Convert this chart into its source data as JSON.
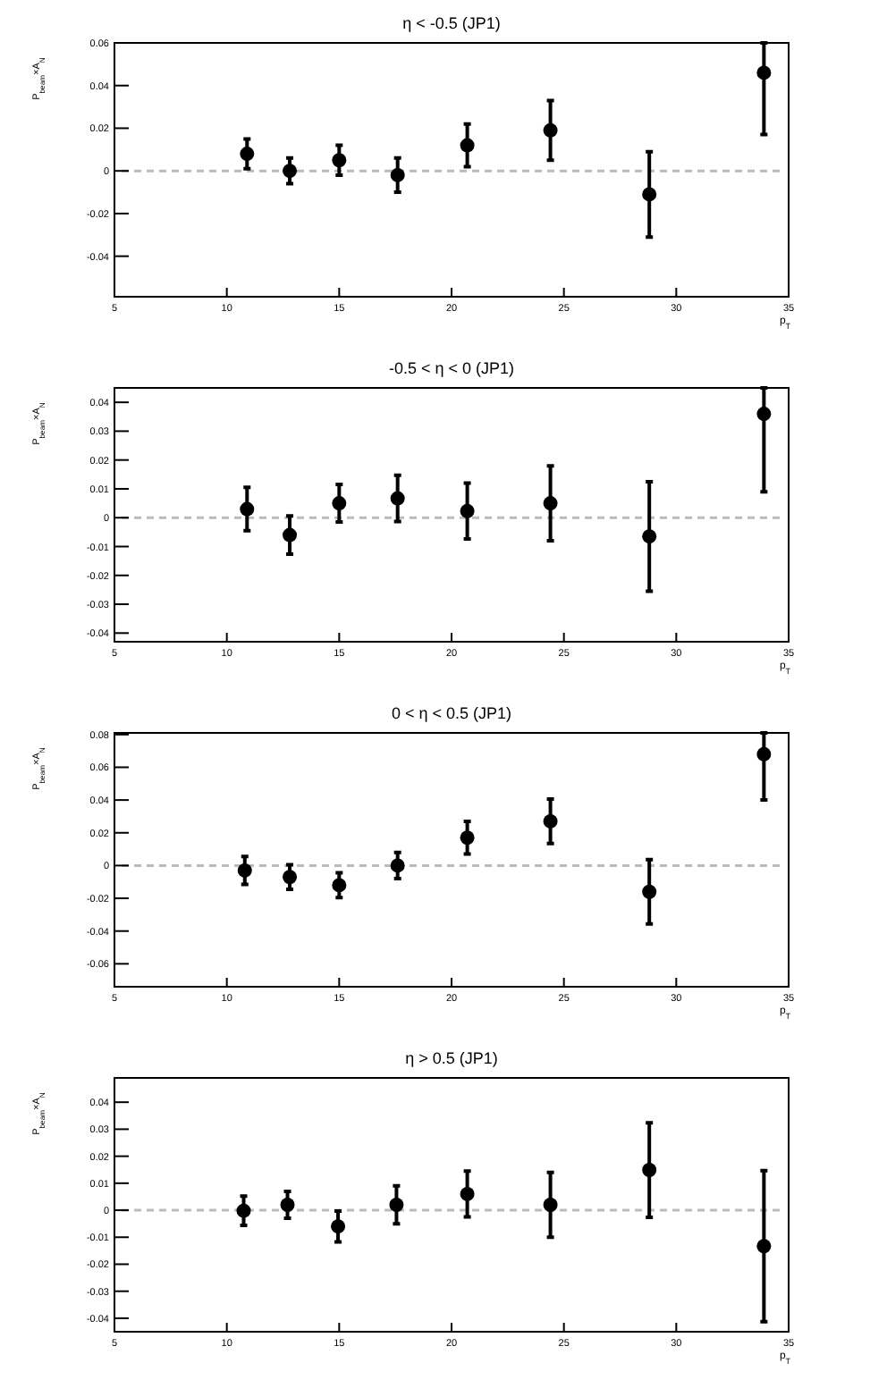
{
  "chart_data": [
    {
      "type": "scatter",
      "title": "η < -0.5 (JP1)",
      "xlabel": "p$_{T}$",
      "ylabel": "P$_{beam}$×A$_{N}$",
      "xlim": [
        5,
        35
      ],
      "xticks": [
        5,
        10,
        15,
        20,
        25,
        30,
        35
      ],
      "ylim": [
        -0.059,
        0.06
      ],
      "yticks": [
        -0.04,
        -0.02,
        0,
        0.02,
        0.04,
        0.06
      ],
      "marker": "circle",
      "grid": false,
      "ref_lines": [
        {
          "axis": "y",
          "value": 0,
          "color": "#bbbbbb",
          "line_style": "dashed"
        }
      ],
      "series": [
        {
          "color": "#000000",
          "x": [
            10.9,
            12.8,
            15.0,
            17.6,
            20.7,
            24.4,
            28.8,
            33.9
          ],
          "values": [
            0.008,
            0.0,
            0.005,
            -0.002,
            0.012,
            0.019,
            -0.011,
            0.046
          ],
          "errors": [
            0.007,
            0.006,
            0.007,
            0.008,
            0.01,
            0.014,
            0.02,
            [
              0.017,
              0.06
            ]
          ]
        }
      ]
    },
    {
      "type": "scatter",
      "title": "-0.5 < η < 0 (JP1)",
      "xlabel": "p$_{T}$",
      "ylabel": "P$_{beam}$×A$_{N}$",
      "xlim": [
        5,
        35
      ],
      "xticks": [
        5,
        10,
        15,
        20,
        25,
        30,
        35
      ],
      "ylim": [
        -0.043,
        0.045
      ],
      "yticks": [
        -0.04,
        -0.03,
        -0.02,
        -0.01,
        0,
        0.01,
        0.02,
        0.03,
        0.04
      ],
      "marker": "circle",
      "grid": false,
      "ref_lines": [
        {
          "axis": "y",
          "value": 0,
          "color": "#bbbbbb",
          "line_style": "dashed"
        }
      ],
      "series": [
        {
          "color": "#000000",
          "x": [
            10.9,
            12.8,
            15.0,
            17.6,
            20.7,
            24.4,
            28.8,
            33.9
          ],
          "values": [
            0.003,
            -0.006,
            0.005,
            0.0067,
            0.0023,
            0.005,
            -0.0065,
            0.036
          ],
          "errors": [
            0.0075,
            0.0066,
            0.0065,
            0.008,
            0.0097,
            0.013,
            0.019,
            [
              0.009,
              0.045
            ]
          ]
        }
      ]
    },
    {
      "type": "scatter",
      "title": "0 < η < 0.5 (JP1)",
      "xlabel": "p$_{T}$",
      "ylabel": "P$_{beam}$×A$_{N}$",
      "xlim": [
        5,
        35
      ],
      "xticks": [
        5,
        10,
        15,
        20,
        25,
        30,
        35
      ],
      "ylim": [
        -0.074,
        0.081
      ],
      "yticks": [
        -0.06,
        -0.04,
        -0.02,
        0,
        0.02,
        0.04,
        0.06,
        0.08
      ],
      "marker": "circle",
      "grid": false,
      "ref_lines": [
        {
          "axis": "y",
          "value": 0,
          "color": "#bbbbbb",
          "line_style": "dashed"
        }
      ],
      "series": [
        {
          "color": "#000000",
          "x": [
            10.8,
            12.8,
            15.0,
            17.6,
            20.7,
            24.4,
            28.8,
            33.9
          ],
          "values": [
            -0.003,
            -0.007,
            -0.012,
            0.0,
            0.017,
            0.027,
            -0.016,
            0.068
          ],
          "errors": [
            0.0085,
            0.0075,
            0.0076,
            0.008,
            0.01,
            0.0136,
            0.0196,
            [
              0.04,
              0.081
            ]
          ]
        }
      ]
    },
    {
      "type": "scatter",
      "title": "η > 0.5 (JP1)",
      "xlabel": "p$_{T}$",
      "ylabel": "P$_{beam}$×A$_{N}$",
      "xlim": [
        5,
        35
      ],
      "xticks": [
        5,
        10,
        15,
        20,
        25,
        30,
        35
      ],
      "ylim": [
        -0.045,
        0.049
      ],
      "yticks": [
        -0.04,
        -0.03,
        -0.02,
        -0.01,
        0,
        0.01,
        0.02,
        0.03,
        0.04
      ],
      "marker": "circle",
      "grid": false,
      "ref_lines": [
        {
          "axis": "y",
          "value": 0,
          "color": "#bbbbbb",
          "line_style": "dashed"
        }
      ],
      "series": [
        {
          "color": "#000000",
          "x": [
            10.75,
            12.7,
            14.95,
            17.55,
            20.7,
            24.4,
            28.8,
            33.9
          ],
          "values": [
            -0.0002,
            0.002,
            -0.006,
            0.002,
            0.006,
            0.002,
            0.0149,
            -0.0133
          ],
          "errors": [
            0.0054,
            0.005,
            0.0057,
            0.007,
            0.0085,
            0.012,
            0.0175,
            0.028
          ]
        }
      ]
    }
  ]
}
